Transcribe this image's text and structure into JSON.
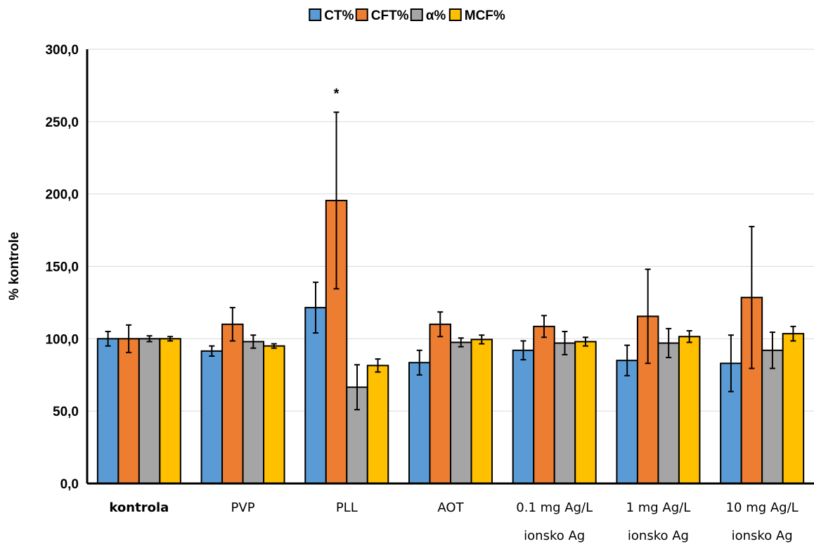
{
  "chart_data": {
    "type": "bar",
    "title": "",
    "xlabel": "",
    "ylabel": "% kontrole",
    "ylim": [
      0,
      300
    ],
    "y_ticks": [
      "0,0",
      "50,0",
      "100,0",
      "150,0",
      "200,0",
      "250,0",
      "300,0"
    ],
    "grid": true,
    "legend_position": "top-center",
    "categories": [
      [
        "kontrola"
      ],
      [
        "PVP"
      ],
      [
        "PLL"
      ],
      [
        "AOT"
      ],
      [
        "0.1 mg Ag/L",
        "ionsko Ag"
      ],
      [
        "1 mg Ag/L",
        "ionsko Ag"
      ],
      [
        "10 mg Ag/L",
        "ionsko Ag"
      ]
    ],
    "bold_categories": [
      0
    ],
    "series": [
      {
        "name": "CT%",
        "color": "#5B9BD5",
        "values": [
          100,
          91.5,
          121.5,
          83.5,
          92,
          85,
          83
        ],
        "errors": [
          5,
          3.5,
          17.5,
          8.5,
          6.5,
          10.5,
          19.5
        ]
      },
      {
        "name": "CFT%",
        "color": "#ED7D31",
        "values": [
          100,
          110,
          195.5,
          110,
          108.5,
          115.5,
          128.5
        ],
        "errors": [
          9.5,
          11.5,
          61,
          8.5,
          7.5,
          32.5,
          49
        ]
      },
      {
        "name": "α%",
        "color": "#A5A5A5",
        "values": [
          100,
          98,
          66.5,
          97.5,
          97,
          97,
          92
        ],
        "errors": [
          2,
          4.5,
          15.5,
          3,
          8,
          10,
          12.5
        ]
      },
      {
        "name": "MCF%",
        "color": "#FFC000",
        "values": [
          100,
          95,
          81.5,
          99.5,
          98,
          101.5,
          103.5
        ],
        "errors": [
          1.5,
          1.5,
          4.5,
          3,
          3,
          4,
          5
        ]
      }
    ],
    "annotations": [
      {
        "text": "*",
        "category": 2,
        "series": 1
      }
    ]
  }
}
